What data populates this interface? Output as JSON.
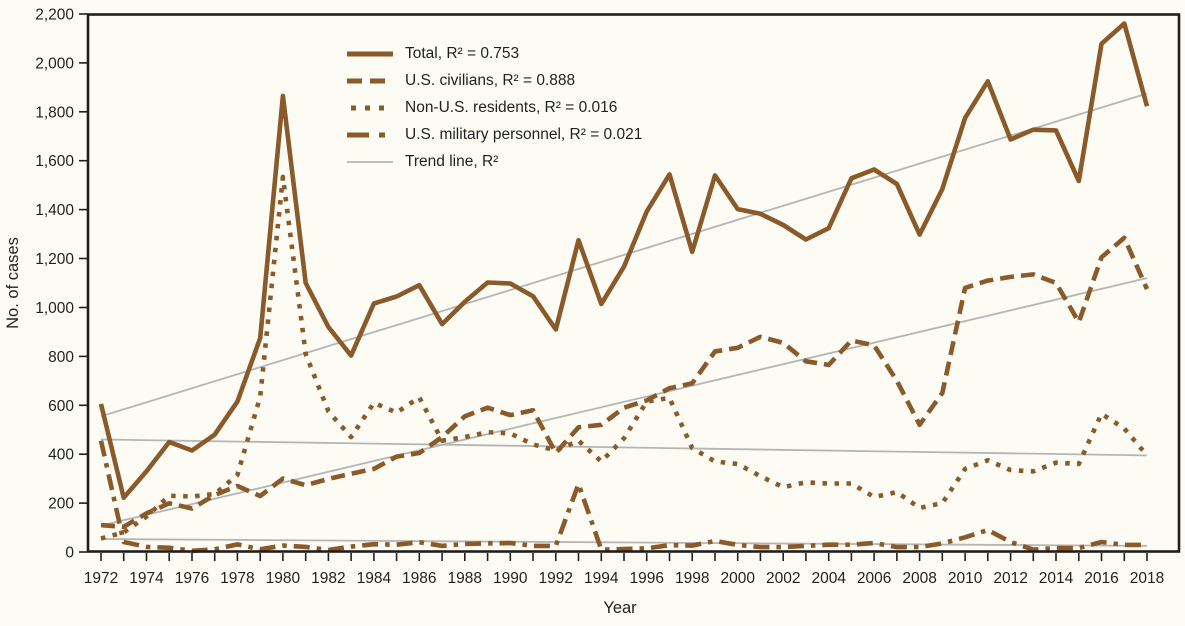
{
  "chart_data": {
    "type": "line",
    "title": "",
    "xlabel": "Year",
    "ylabel": "No. of cases",
    "ylim": [
      0,
      2200
    ],
    "x_range": [
      1972,
      2018
    ],
    "x_tick_label_every": 2,
    "grid": false,
    "legend_position": "top-left-of-plot",
    "colors": {
      "series": "#8a5a2b",
      "trend": "#b5b5b5",
      "axis": "#231f20",
      "background": "#fcfcf5"
    },
    "y_ticks": [
      {
        "value": 0,
        "label": "0"
      },
      {
        "value": 200,
        "label": "200"
      },
      {
        "value": 400,
        "label": "400"
      },
      {
        "value": 600,
        "label": "600"
      },
      {
        "value": 800,
        "label": "800"
      },
      {
        "value": 1000,
        "label": "1,000"
      },
      {
        "value": 1200,
        "label": "1,200"
      },
      {
        "value": 1400,
        "label": "1,400"
      },
      {
        "value": 1600,
        "label": "1,600"
      },
      {
        "value": 1800,
        "label": "1,800"
      },
      {
        "value": 2000,
        "label": "2,000"
      },
      {
        "value": 2200,
        "label": "2,200"
      }
    ],
    "x": [
      1972,
      1973,
      1974,
      1975,
      1976,
      1977,
      1978,
      1979,
      1980,
      1981,
      1982,
      1983,
      1984,
      1985,
      1986,
      1987,
      1988,
      1989,
      1990,
      1991,
      1992,
      1993,
      1994,
      1995,
      1996,
      1997,
      1998,
      1999,
      2000,
      2001,
      2002,
      2003,
      2004,
      2005,
      2006,
      2007,
      2008,
      2009,
      2010,
      2011,
      2012,
      2013,
      2014,
      2015,
      2016,
      2017,
      2018
    ],
    "series": [
      {
        "key": "total",
        "name": "Total",
        "legend_label": "Total, R² = 0.753",
        "r_squared": 0.753,
        "style": "solid",
        "values": [
          605,
          222,
          330,
          450,
          415,
          480,
          615,
          875,
          1865,
          1100,
          920,
          803,
          1016,
          1045,
          1091,
          932,
          1023,
          1102,
          1098,
          1046,
          910,
          1275,
          1014,
          1167,
          1392,
          1544,
          1227,
          1540,
          1402,
          1383,
          1337,
          1278,
          1324,
          1528,
          1564,
          1505,
          1298,
          1484,
          1775,
          1925,
          1687,
          1727,
          1724,
          1517,
          2078,
          2161,
          1823
        ]
      },
      {
        "key": "civilians",
        "name": "U.S. civilians",
        "legend_label": "U.S. civilians, R² = 0.888",
        "r_squared": 0.888,
        "style": "dashed",
        "values": [
          110,
          103,
          158,
          199,
          178,
          233,
          270,
          229,
          300,
          273,
          299,
          320,
          340,
          390,
          405,
          470,
          555,
          590,
          560,
          580,
          405,
          510,
          520,
          590,
          620,
          670,
          690,
          820,
          835,
          880,
          855,
          780,
          765,
          865,
          845,
          700,
          520,
          650,
          1080,
          1110,
          1125,
          1135,
          1100,
          940,
          1205,
          1285,
          1075
        ]
      },
      {
        "key": "non_us_residents",
        "name": "Non-U.S. residents",
        "legend_label": "Non-U.S. residents, R² = 0.016",
        "r_squared": 0.016,
        "style": "dotted",
        "values": [
          55,
          80,
          145,
          230,
          227,
          237,
          315,
          635,
          1534,
          810,
          575,
          470,
          610,
          570,
          632,
          455,
          470,
          490,
          485,
          440,
          415,
          455,
          370,
          465,
          615,
          630,
          425,
          370,
          360,
          310,
          265,
          285,
          280,
          280,
          225,
          245,
          180,
          200,
          340,
          375,
          335,
          330,
          365,
          360,
          565,
          505,
          395
        ]
      },
      {
        "key": "military",
        "name": "U.S. military personnel",
        "legend_label": "U.S. military personnel, R² = 0.021",
        "r_squared": 0.021,
        "style": "dash-dot",
        "values": [
          455,
          41,
          21,
          17,
          5,
          11,
          31,
          11,
          26,
          21,
          8,
          22,
          32,
          30,
          40,
          25,
          33,
          35,
          37,
          25,
          25,
          278,
          10,
          12,
          15,
          28,
          26,
          45,
          29,
          20,
          20,
          25,
          30,
          30,
          37,
          20,
          20,
          35,
          60,
          90,
          41,
          10,
          16,
          16,
          41,
          29,
          29
        ]
      }
    ],
    "trend_lines": [
      {
        "series": "total",
        "start_value": 555,
        "end_value": 1875
      },
      {
        "series": "civilians",
        "start_value": 108,
        "end_value": 1120
      },
      {
        "series": "non_us_residents",
        "start_value": 460,
        "end_value": 395
      },
      {
        "series": "military",
        "start_value": 53,
        "end_value": 25
      }
    ],
    "trend_legend_label": "Trend line, R²"
  }
}
